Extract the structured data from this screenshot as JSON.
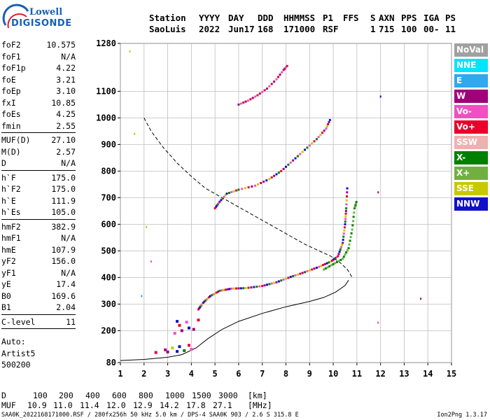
{
  "logo": {
    "line1": "Lowell",
    "line2": "DIGISONDE"
  },
  "header": {
    "row1": [
      "Station",
      "YYYY",
      "DAY",
      "DDD",
      "HHMMSS",
      "P1",
      "FFS",
      "S",
      "AXN",
      "PPS",
      "IGA",
      "PS"
    ],
    "row2": [
      "SaoLuis",
      "2022",
      "Jun17",
      "168",
      "171000",
      "RSF",
      "",
      "1",
      "715",
      "100",
      "00-",
      "11"
    ]
  },
  "params": [
    {
      "key": "foF2",
      "value": "10.575"
    },
    {
      "key": "foF1",
      "value": "N/A"
    },
    {
      "key": "foF1p",
      "value": "4.22"
    },
    {
      "key": "foE",
      "value": "3.21"
    },
    {
      "key": "foEp",
      "value": "3.10"
    },
    {
      "key": "fxI",
      "value": "10.85"
    },
    {
      "key": "foEs",
      "value": "4.25"
    },
    {
      "key": "fmin",
      "value": "2.55"
    },
    {
      "sep": true
    },
    {
      "key": "MUF(D)",
      "value": "27.10"
    },
    {
      "key": "M(D)",
      "value": "2.57"
    },
    {
      "key": "D",
      "value": "N/A"
    },
    {
      "sep": true
    },
    {
      "key": "h`F",
      "value": "175.0"
    },
    {
      "key": "h`F2",
      "value": "175.0"
    },
    {
      "key": "h`E",
      "value": "111.9"
    },
    {
      "key": "h`Es",
      "value": "105.0"
    },
    {
      "sep": true
    },
    {
      "key": "hmF2",
      "value": "382.9"
    },
    {
      "key": "hmF1",
      "value": "N/A"
    },
    {
      "key": "hmE",
      "value": "107.9"
    },
    {
      "key": "yF2",
      "value": "156.0"
    },
    {
      "key": "yF1",
      "value": "N/A"
    },
    {
      "key": "yE",
      "value": "17.4"
    },
    {
      "key": "B0",
      "value": "169.6"
    },
    {
      "key": "B1",
      "value": "2.04"
    },
    {
      "sep": true
    },
    {
      "key": "C-level",
      "value": "11"
    },
    {
      "sep": true
    }
  ],
  "auto": {
    "line1": "Auto:",
    "line2": "Artist5",
    "line3": "500200"
  },
  "legend": [
    {
      "label": "NoVal",
      "color": "#a0a0a0"
    },
    {
      "label": "NNE",
      "color": "#00e5ff"
    },
    {
      "label": "E",
      "color": "#2fa8f0"
    },
    {
      "label": "W",
      "color": "#a0007a"
    },
    {
      "label": "Vo-",
      "color": "#f050c0"
    },
    {
      "label": "Vo+",
      "color": "#e8002a"
    },
    {
      "label": "SSW",
      "color": "#f0b0b0"
    },
    {
      "label": "X-",
      "color": "#008000"
    },
    {
      "label": "X+",
      "color": "#70b040"
    },
    {
      "label": "SSE",
      "color": "#c8c800"
    },
    {
      "label": "NNW",
      "color": "#1010c8"
    }
  ],
  "dmuf": {
    "d_label": "D",
    "d_values": [
      "100",
      "200",
      "400",
      "600",
      "800",
      "1000",
      "1500",
      "3000"
    ],
    "d_unit": "[km]",
    "muf_label": "MUF",
    "muf_values": [
      "10.9",
      "11.0",
      "11.4",
      "12.0",
      "12.9",
      "14.2",
      "17.8",
      "27.1"
    ],
    "muf_unit": "[MHz]"
  },
  "footer": {
    "left": "SAA0K_2022168171000.RSF / 280fx256h 50 kHz 5.0 km / DPS-4 SAA0K 903 / 2.6 S 315.8 E",
    "right": "Ion2Png 1.3.17"
  },
  "chart_data": {
    "type": "scatter",
    "xlim": [
      1,
      15
    ],
    "ylim": [
      80,
      1280
    ],
    "x_ticks": [
      "1",
      "2",
      "3",
      "4",
      "5",
      "6",
      "7",
      "8",
      "9",
      "10",
      "11",
      "12",
      "13",
      "14",
      "15"
    ],
    "y_ticks": [
      "80",
      "200",
      "300",
      "400",
      "500",
      "600",
      "700",
      "800",
      "900",
      "1000",
      "1100",
      "1280"
    ],
    "grid": true,
    "profile_dashed": [
      [
        2.0,
        1000
      ],
      [
        2.3,
        950
      ],
      [
        2.8,
        890
      ],
      [
        3.4,
        830
      ],
      [
        4.0,
        780
      ],
      [
        4.6,
        735
      ],
      [
        5.3,
        700
      ],
      [
        6.0,
        665
      ],
      [
        6.8,
        625
      ],
      [
        7.5,
        590
      ],
      [
        8.2,
        555
      ],
      [
        8.8,
        525
      ],
      [
        9.4,
        500
      ],
      [
        9.9,
        480
      ],
      [
        10.3,
        455
      ],
      [
        10.6,
        430
      ],
      [
        10.8,
        400
      ]
    ],
    "profile_solid": [
      [
        1.0,
        88
      ],
      [
        2.0,
        92
      ],
      [
        3.0,
        100
      ],
      [
        3.6,
        110
      ],
      [
        4.2,
        135
      ],
      [
        4.7,
        170
      ],
      [
        5.3,
        205
      ],
      [
        6.0,
        235
      ],
      [
        7.0,
        265
      ],
      [
        8.0,
        290
      ],
      [
        9.0,
        310
      ],
      [
        9.6,
        325
      ],
      [
        10.1,
        345
      ],
      [
        10.5,
        370
      ],
      [
        10.65,
        390
      ]
    ],
    "o_trace": [
      [
        4.3,
        280
      ],
      [
        4.5,
        305
      ],
      [
        4.8,
        330
      ],
      [
        5.2,
        350
      ],
      [
        5.7,
        358
      ],
      [
        6.3,
        360
      ],
      [
        7.0,
        368
      ],
      [
        7.6,
        382
      ],
      [
        8.2,
        402
      ],
      [
        8.8,
        420
      ],
      [
        9.4,
        440
      ],
      [
        9.9,
        460
      ],
      [
        10.2,
        480
      ],
      [
        10.4,
        530
      ],
      [
        10.5,
        600
      ],
      [
        10.55,
        660
      ],
      [
        10.6,
        750
      ]
    ],
    "x_trace": [
      [
        9.6,
        430
      ],
      [
        10.0,
        450
      ],
      [
        10.4,
        470
      ],
      [
        10.65,
        510
      ],
      [
        10.8,
        580
      ],
      [
        10.9,
        660
      ],
      [
        11.0,
        690
      ]
    ],
    "o_trace_2hop": [
      [
        5.0,
        660
      ],
      [
        5.2,
        685
      ],
      [
        5.5,
        715
      ],
      [
        6.0,
        730
      ],
      [
        6.7,
        745
      ],
      [
        7.3,
        770
      ],
      [
        7.8,
        800
      ],
      [
        8.3,
        840
      ],
      [
        8.8,
        880
      ],
      [
        9.3,
        920
      ],
      [
        9.7,
        960
      ],
      [
        9.9,
        1000
      ]
    ],
    "o_trace_3hop": [
      [
        6.0,
        1050
      ],
      [
        6.4,
        1065
      ],
      [
        6.8,
        1085
      ],
      [
        7.2,
        1110
      ],
      [
        7.6,
        1145
      ],
      [
        7.9,
        1180
      ],
      [
        8.1,
        1200
      ]
    ],
    "es_scatter": [
      [
        2.5,
        118
      ],
      [
        3.0,
        120
      ],
      [
        3.4,
        122
      ],
      [
        3.7,
        125
      ],
      [
        4.0,
        130
      ],
      [
        3.2,
        135
      ],
      [
        3.9,
        145
      ],
      [
        2.9,
        128
      ],
      [
        3.5,
        140
      ]
    ],
    "es2_scatter": [
      [
        3.3,
        190
      ],
      [
        3.6,
        200
      ],
      [
        3.9,
        210
      ],
      [
        3.5,
        220
      ],
      [
        3.8,
        232
      ],
      [
        4.1,
        205
      ],
      [
        3.4,
        235
      ],
      [
        4.3,
        240
      ]
    ],
    "stray_points": [
      [
        1.4,
        1250
      ],
      [
        1.6,
        940
      ],
      [
        2.1,
        590
      ],
      [
        2.3,
        460
      ],
      [
        1.9,
        330
      ],
      [
        12.0,
        1080
      ],
      [
        11.9,
        720
      ],
      [
        13.7,
        320
      ],
      [
        11.9,
        230
      ]
    ]
  }
}
